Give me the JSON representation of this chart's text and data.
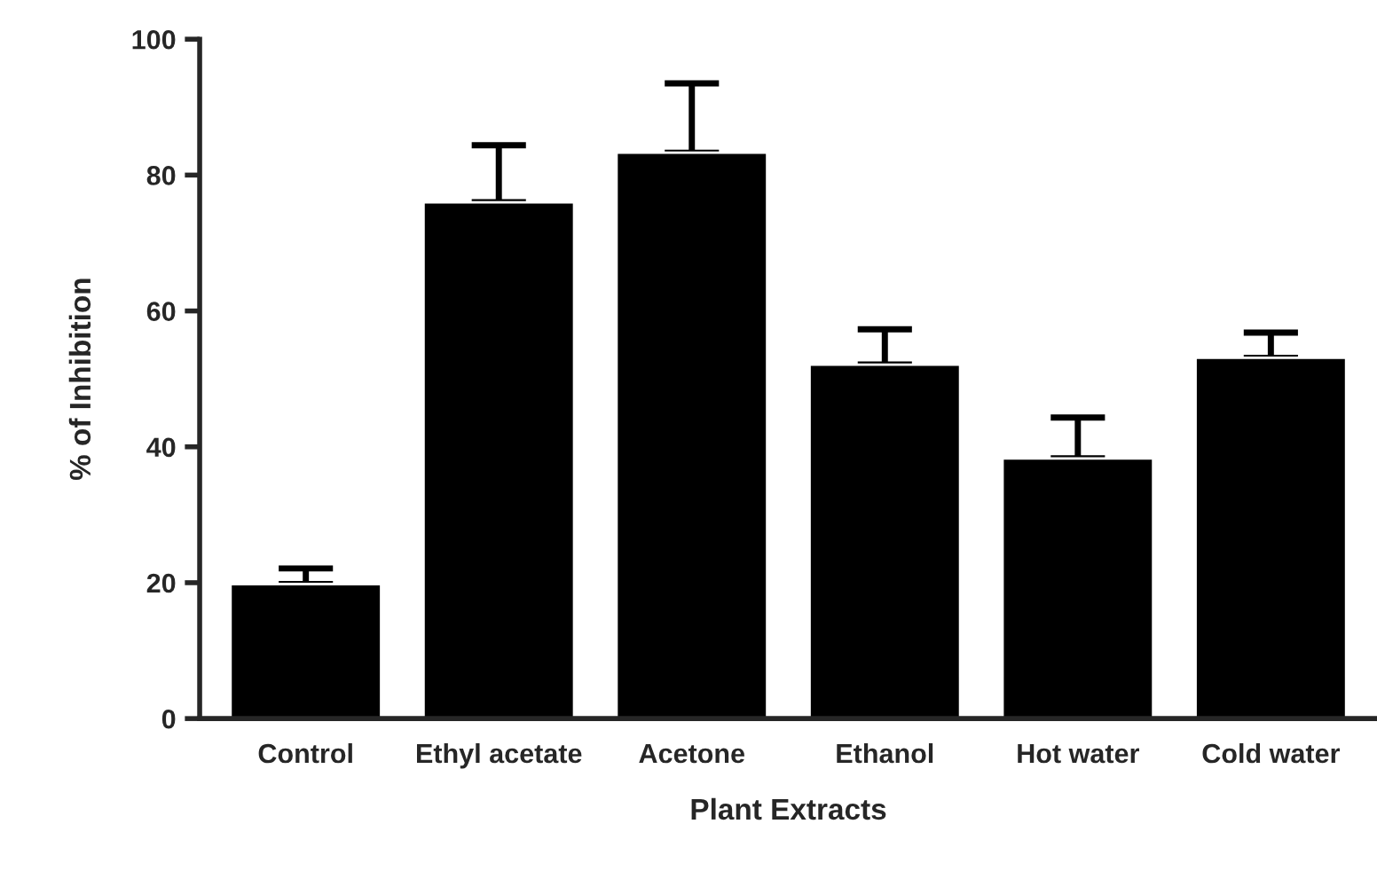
{
  "chart_data": {
    "type": "bar",
    "xlabel": "Plant Extracts",
    "ylabel": "% of Inhibition",
    "categories": [
      "Control",
      "Ethyl acetate",
      "Acetone",
      "Ethanol",
      "Hot water",
      "Cold water"
    ],
    "values": [
      19.8,
      76,
      83.3,
      52.1,
      38.3,
      53.1
    ],
    "errors": [
      [
        19.8,
        22.1
      ],
      [
        76,
        84.4
      ],
      [
        83.3,
        93.5
      ],
      [
        52.1,
        57.3
      ],
      [
        38.3,
        44.3
      ],
      [
        53.1,
        56.8
      ]
    ],
    "color": "#000000",
    "ylim": [
      0,
      100
    ],
    "yticks": [
      0,
      20,
      40,
      60,
      80,
      100
    ],
    "grid": false,
    "legend": false
  }
}
